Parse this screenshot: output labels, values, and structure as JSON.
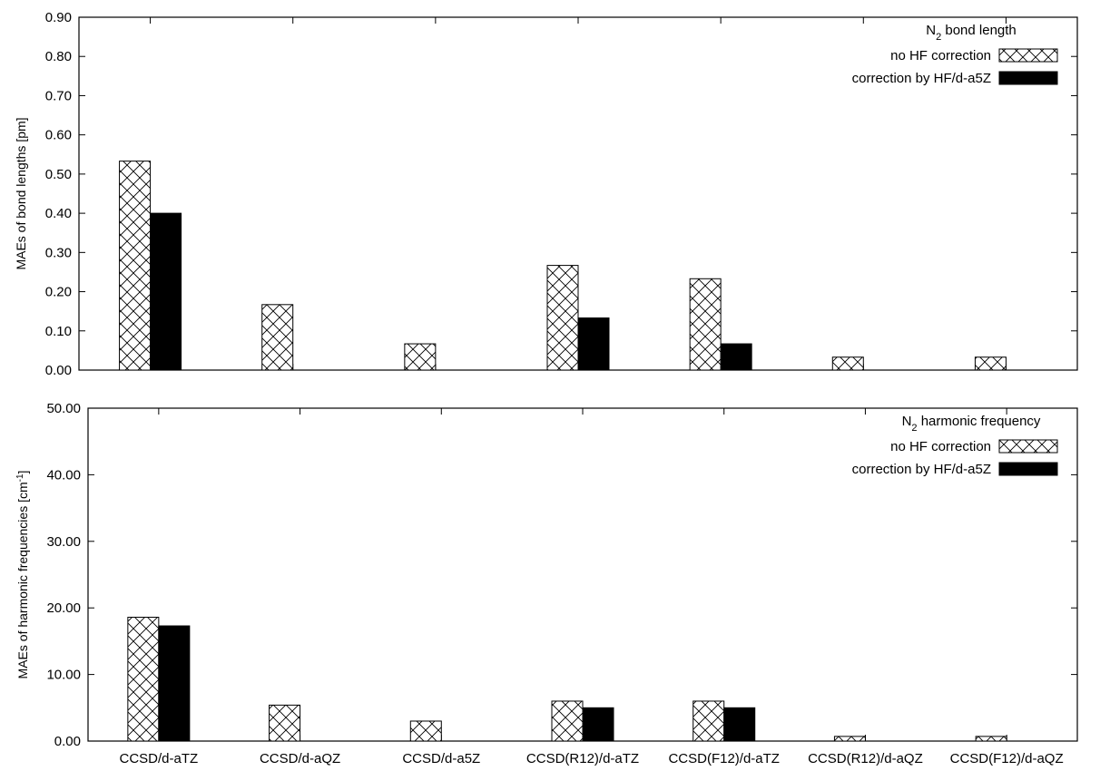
{
  "chart_data": [
    {
      "type": "bar",
      "categories": [
        "CCSD/d-aTZ",
        "CCSD/d-aQZ",
        "CCSD/d-a5Z",
        "CCSD(R12)/d-aTZ",
        "CCSD(F12)/d-aTZ",
        "CCSD(R12)/d-aQZ",
        "CCSD(F12)/d-aQZ"
      ],
      "series": [
        {
          "name": "no HF correction",
          "pattern": "crosshatch",
          "values": [
            0.533,
            0.167,
            0.067,
            0.267,
            0.233,
            0.033,
            0.033
          ]
        },
        {
          "name": "correction by HF/d-a5Z",
          "pattern": "solid",
          "values": [
            0.4,
            0,
            0,
            0.133,
            0.067,
            0,
            0
          ]
        }
      ],
      "title_main": "N",
      "title_sub": "2",
      "title_rest": " bond length",
      "ylabel": "MAEs of bond lengths [pm]",
      "ylim": [
        0,
        0.9
      ],
      "yticks": [
        "0.00",
        "0.10",
        "0.20",
        "0.30",
        "0.40",
        "0.50",
        "0.60",
        "0.70",
        "0.80",
        "0.90"
      ],
      "legend_position": "top-right",
      "grid": false,
      "show_xticklabels": false
    },
    {
      "type": "bar",
      "categories": [
        "CCSD/d-aTZ",
        "CCSD/d-aQZ",
        "CCSD/d-a5Z",
        "CCSD(R12)/d-aTZ",
        "CCSD(F12)/d-aTZ",
        "CCSD(R12)/d-aQZ",
        "CCSD(F12)/d-aQZ"
      ],
      "series": [
        {
          "name": "no HF correction",
          "pattern": "crosshatch",
          "values": [
            18.6,
            5.4,
            3.0,
            6.0,
            6.0,
            0.7,
            0.7
          ]
        },
        {
          "name": "correction by HF/d-a5Z",
          "pattern": "solid",
          "values": [
            17.3,
            0,
            0,
            5.0,
            5.0,
            0,
            0
          ]
        }
      ],
      "title_main": "N",
      "title_sub": "2",
      "title_rest": " harmonic frequency",
      "ylabel": "MAEs of harmonic frequencies [cm",
      "ylabel_sup": "-1",
      "ylabel_end": "]",
      "ylim": [
        0,
        50
      ],
      "yticks": [
        "0.00",
        "10.00",
        "20.00",
        "30.00",
        "40.00",
        "50.00"
      ],
      "legend_position": "top-right",
      "grid": false,
      "show_xticklabels": true
    }
  ]
}
